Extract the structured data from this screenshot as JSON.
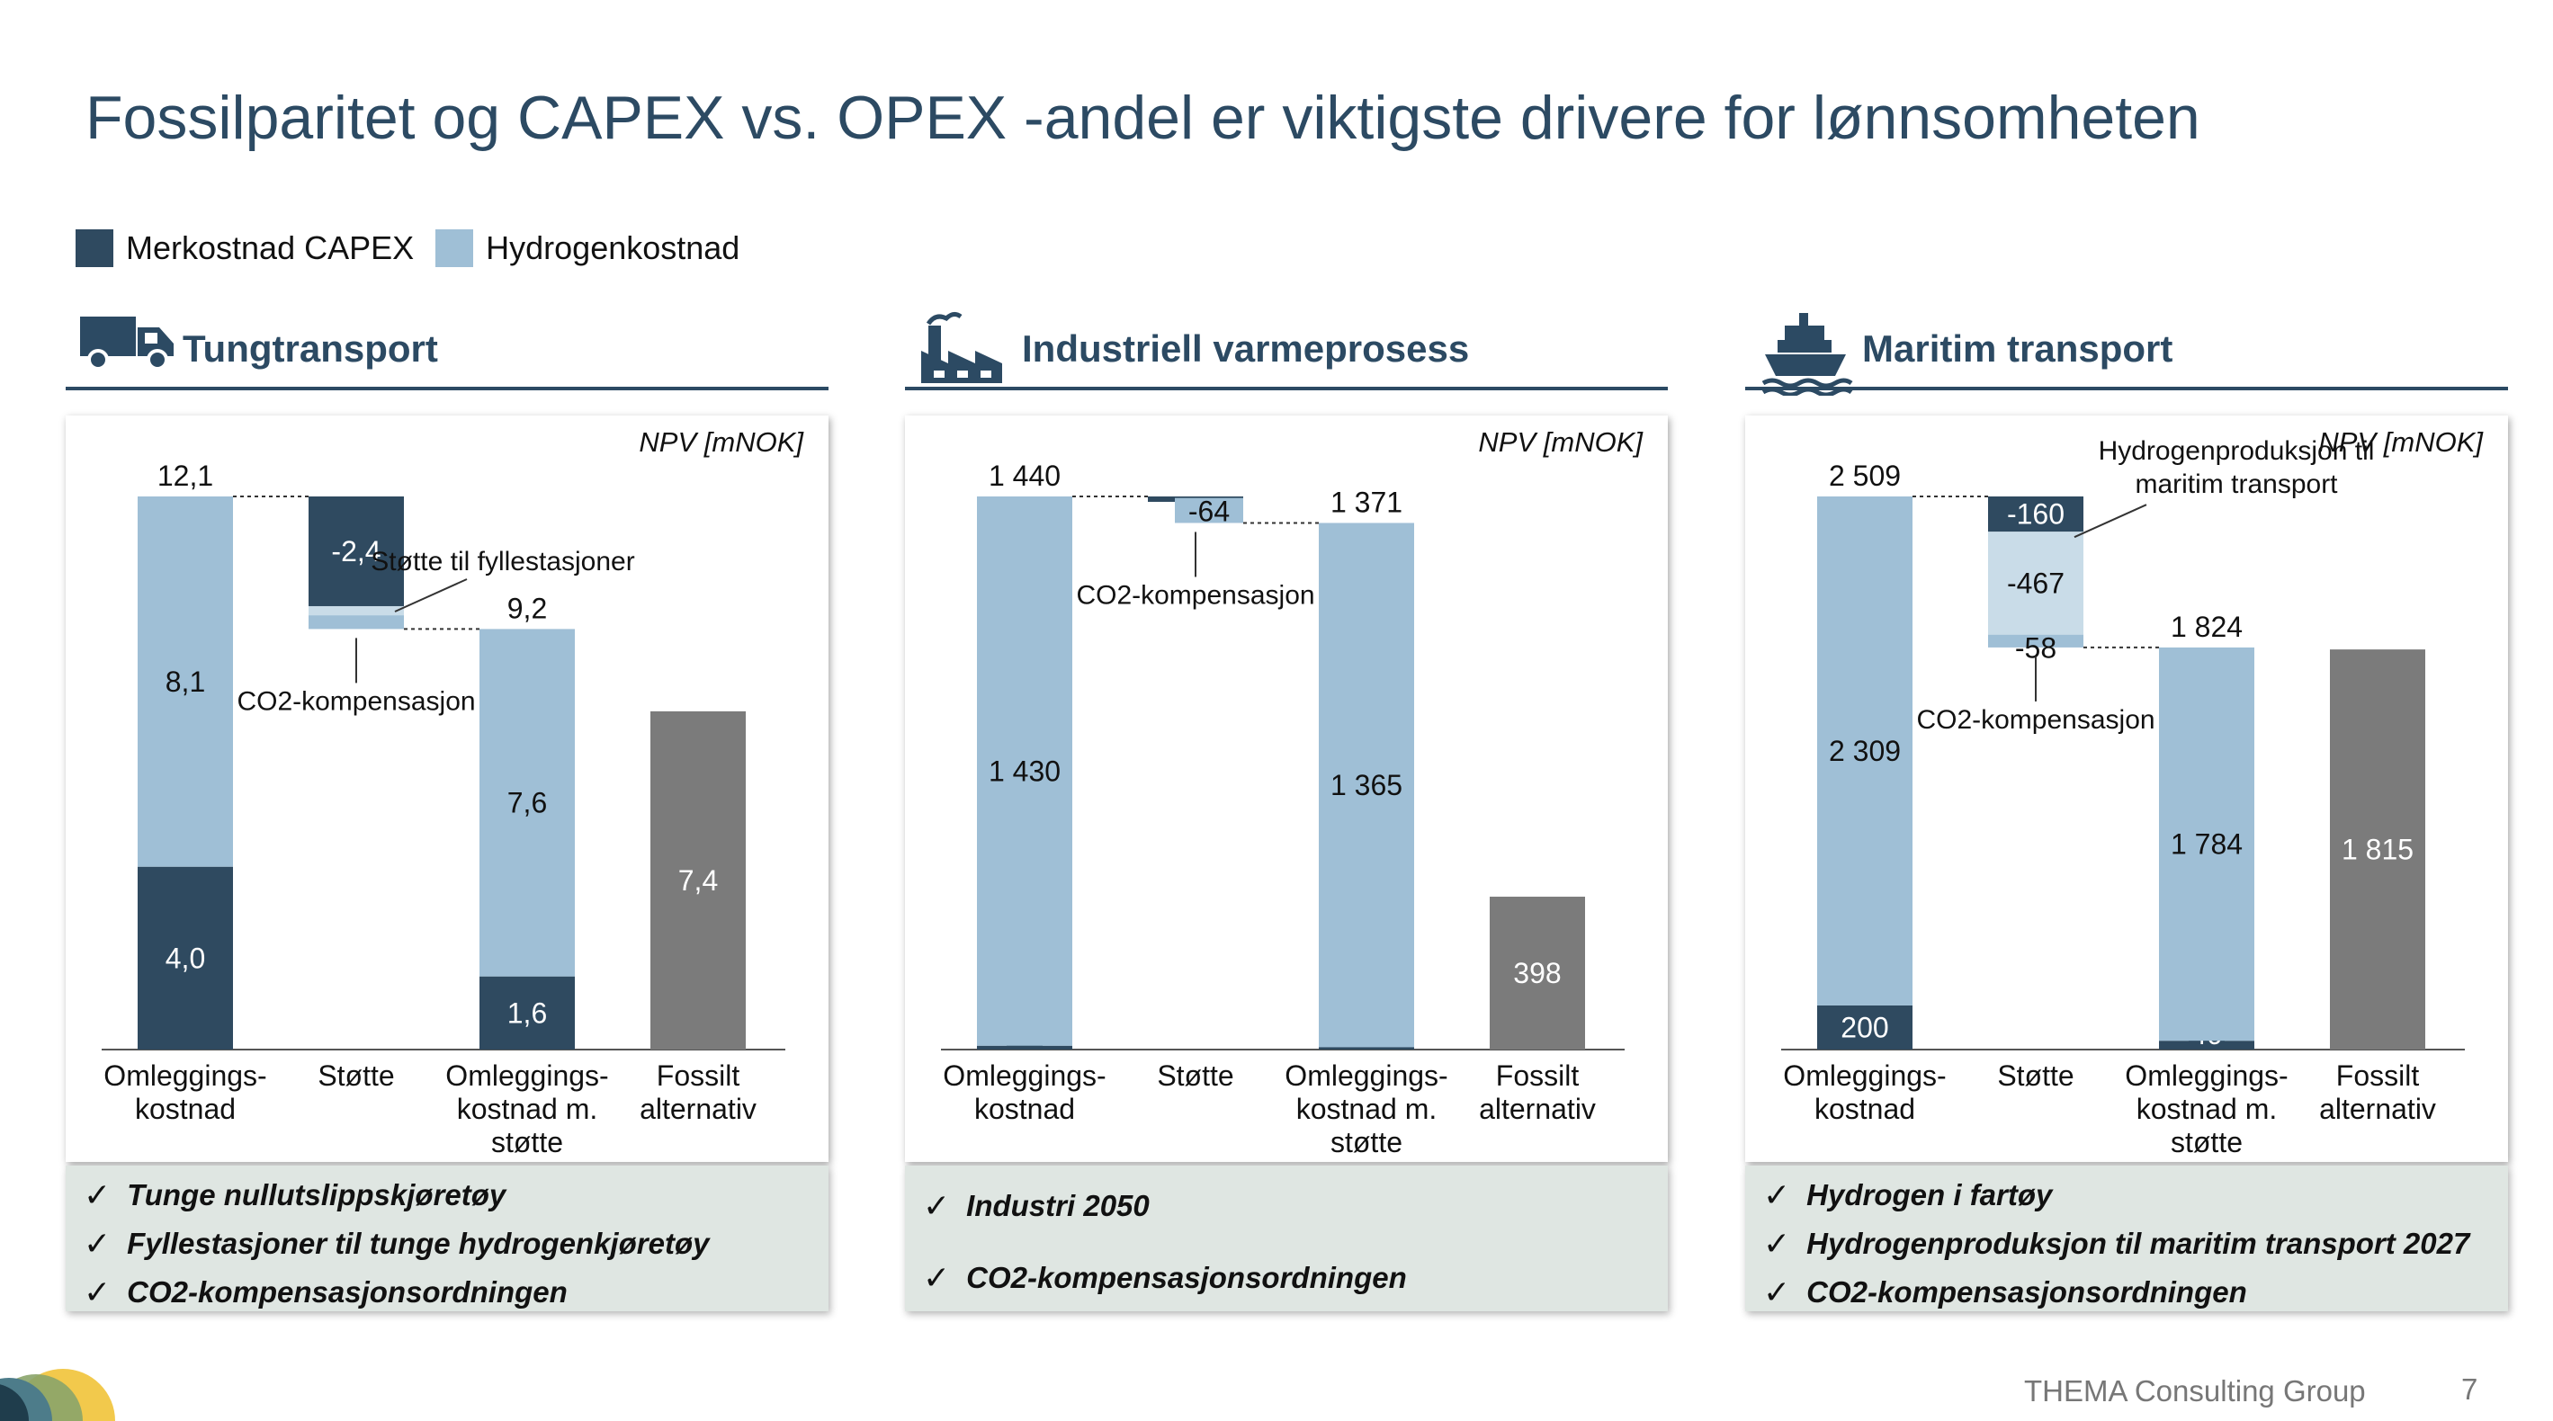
{
  "title": "Fossilparitet og CAPEX vs. OPEX -andel er viktigste drivere for lønnsomheten",
  "legend": [
    {
      "label": "Merkostnad CAPEX",
      "color": "#2f4a60"
    },
    {
      "label": "Hydrogenkostnad",
      "color": "#9fbfd6"
    }
  ],
  "colors": {
    "capex": "#2f4a60",
    "hydrogen": "#9fbfd6",
    "support_light": "#c9dce8",
    "fossil": "#7b7b7b"
  },
  "footer": {
    "company": "THEMA Consulting Group",
    "page": "7"
  },
  "panels": [
    {
      "title": "Tungtransport",
      "icon": "truck-icon",
      "notes": [
        "Tunge nullutslippskjøretøy",
        "Fyllestasjoner til tunge hydrogenkjøretøy",
        "CO2-kompensasjonsordningen"
      ]
    },
    {
      "title": "Industriell varmeprosess",
      "icon": "factory-icon",
      "notes": [
        "Industri 2050",
        "CO2-kompensasjonsordningen"
      ]
    },
    {
      "title": "Maritim transport",
      "icon": "ship-icon",
      "notes": [
        "Hydrogen i fartøy",
        "Hydrogenproduksjon til maritim transport 2027",
        "CO2-kompensasjonsordningen"
      ]
    }
  ],
  "chart_data": [
    {
      "type": "bar",
      "unit_label": "NPV [mNOK]",
      "ylim": [
        0,
        12.1
      ],
      "categories": [
        "Omleggings-\nkostnad",
        "Støtte",
        "Omleggings-\nkostnad m.\nstøtte",
        "Fossilt\nalternativ"
      ],
      "bars": [
        {
          "stack": [
            {
              "value": 4.0,
              "label": "4,0",
              "kind": "capex"
            },
            {
              "value": 8.1,
              "label": "8,1",
              "kind": "hydrogen"
            }
          ],
          "total": "12,1"
        },
        {
          "waterfall": [
            {
              "from": 12.1,
              "to": 9.7,
              "label": "-2,4",
              "kind": "capex"
            },
            {
              "from": 9.7,
              "to": 9.5,
              "label": "",
              "kind": "support_light"
            },
            {
              "from": 9.5,
              "to": 9.2,
              "label": "",
              "kind": "hydrogen"
            }
          ]
        },
        {
          "stack": [
            {
              "value": 1.6,
              "label": "1,6",
              "kind": "capex"
            },
            {
              "value": 7.6,
              "label": "7,6",
              "kind": "hydrogen"
            }
          ],
          "total": "9,2"
        },
        {
          "stack": [
            {
              "value": 7.4,
              "label": "7,4",
              "kind": "fossil"
            }
          ]
        }
      ],
      "annotations": [
        "Støtte til fyllestasjoner",
        "CO2-kompensasjon"
      ]
    },
    {
      "type": "bar",
      "unit_label": "NPV [mNOK]",
      "ylim": [
        0,
        1440
      ],
      "categories": [
        "Omleggings-\nkostnad",
        "Støtte",
        "Omleggings-\nkostnad m.\nstøtte",
        "Fossilt\nalternativ"
      ],
      "bars": [
        {
          "stack": [
            {
              "value": 10,
              "label": "10",
              "kind": "capex"
            },
            {
              "value": 1430,
              "label": "1 430",
              "kind": "hydrogen"
            }
          ],
          "total": "1 440"
        },
        {
          "waterfall": [
            {
              "from": 1440,
              "to": 1436,
              "label": "-4",
              "kind": "capex"
            },
            {
              "from": 1436,
              "to": 1371,
              "label": "-64",
              "kind": "hydrogen"
            }
          ]
        },
        {
          "stack": [
            {
              "value": 6,
              "label": "6",
              "kind": "capex"
            },
            {
              "value": 1365,
              "label": "1 365",
              "kind": "hydrogen"
            }
          ],
          "total": "1 371"
        },
        {
          "stack": [
            {
              "value": 398,
              "label": "398",
              "kind": "fossil"
            }
          ]
        }
      ],
      "annotations": [
        "CO2-kompensasjon"
      ]
    },
    {
      "type": "bar",
      "unit_label": "NPV [mNOK]",
      "ylim": [
        0,
        2509
      ],
      "categories": [
        "Omleggings-\nkostnad",
        "Støtte",
        "Omleggings-\nkostnad m.\nstøtte",
        "Fossilt\nalternativ"
      ],
      "bars": [
        {
          "stack": [
            {
              "value": 200,
              "label": "200",
              "kind": "capex"
            },
            {
              "value": 2309,
              "label": "2 309",
              "kind": "hydrogen"
            }
          ],
          "total": "2 509"
        },
        {
          "waterfall": [
            {
              "from": 2509,
              "to": 2349,
              "label": "-160",
              "kind": "capex"
            },
            {
              "from": 2349,
              "to": 1882,
              "label": "-467",
              "kind": "support_light"
            },
            {
              "from": 1882,
              "to": 1824,
              "label": "-58",
              "kind": "hydrogen"
            }
          ]
        },
        {
          "stack": [
            {
              "value": 40,
              "label": "40",
              "kind": "capex"
            },
            {
              "value": 1784,
              "label": "1 784",
              "kind": "hydrogen"
            }
          ],
          "total": "1 824"
        },
        {
          "stack": [
            {
              "value": 1815,
              "label": "1 815",
              "kind": "fossil"
            }
          ]
        }
      ],
      "annotations": [
        "Hydrogenproduksjon til\nmaritim transport",
        "CO2-kompensasjon"
      ]
    }
  ]
}
